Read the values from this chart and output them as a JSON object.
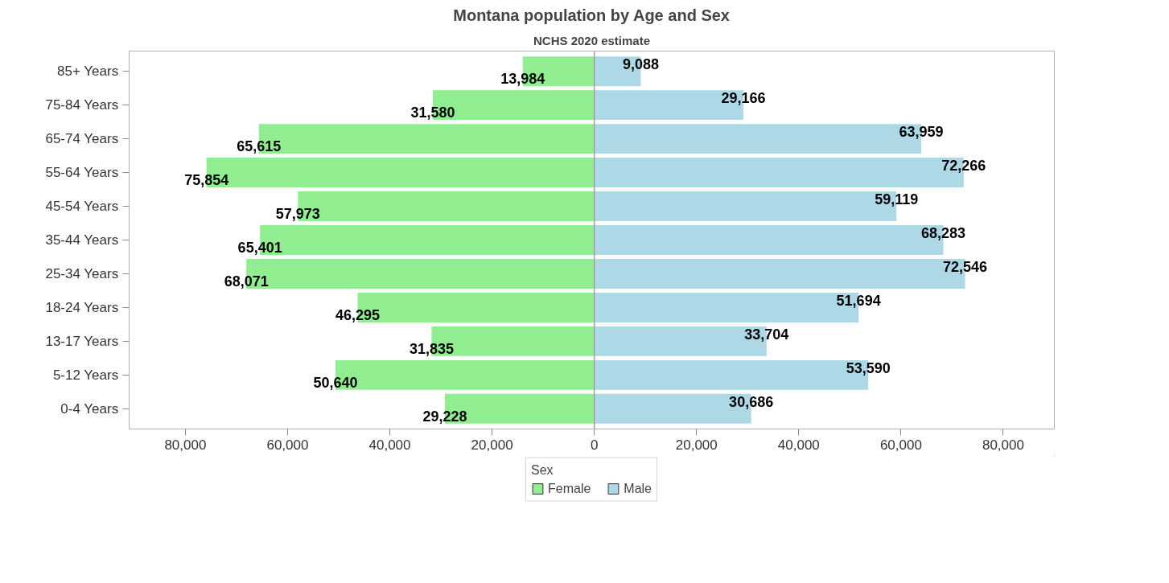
{
  "chart_data": {
    "type": "bar",
    "orientation": "horizontal",
    "title": "Montana population by Age and Sex",
    "subtitle": "NCHS 2020 estimate",
    "legend_title": "Sex",
    "categories": [
      "85+ Years",
      "75-84 Years",
      "65-74 Years",
      "55-64 Years",
      "45-54 Years",
      "35-44 Years",
      "25-34 Years",
      "18-24 Years",
      "13-17 Years",
      "5-12 Years",
      "0-4 Years"
    ],
    "series": [
      {
        "name": "Female",
        "color": "#90ee90",
        "values": [
          13984,
          31580,
          65615,
          75854,
          57973,
          65401,
          68071,
          46295,
          31835,
          50640,
          29228
        ],
        "base": [
          -13984,
          -31580,
          -65615,
          -75854,
          -57973,
          -65401,
          -68071,
          -46295,
          -31835,
          -50640,
          -29228
        ],
        "value_labels": [
          "13,984",
          "31,580",
          "65,615",
          "75,854",
          "57,973",
          "65,401",
          "68,071",
          "46,295",
          "31,835",
          "50,640",
          "29,228"
        ]
      },
      {
        "name": "Male",
        "color": "#add8e6",
        "values": [
          9088,
          29166,
          63959,
          72266,
          59119,
          68283,
          72546,
          51694,
          33704,
          53590,
          30686
        ],
        "value_labels": [
          "9,088",
          "29,166",
          "63,959",
          "72,266",
          "59,119",
          "68,283",
          "72,546",
          "51,694",
          "33,704",
          "53,590",
          "30,686"
        ]
      }
    ],
    "xlim": [
      -91000,
      90000
    ],
    "xticks": [
      {
        "value": -80000,
        "label": "80,000"
      },
      {
        "value": -60000,
        "label": "60,000"
      },
      {
        "value": -40000,
        "label": "40,000"
      },
      {
        "value": -20000,
        "label": "20,000"
      },
      0,
      {
        "value": 20000,
        "label": "20,000"
      },
      {
        "value": 40000,
        "label": "40,000"
      },
      {
        "value": 60000,
        "label": "60,000"
      },
      {
        "value": 80000,
        "label": "80,000"
      }
    ],
    "ref_lines": [
      {
        "axis": "x",
        "value": 0,
        "color": "#a0a0a0"
      }
    ],
    "grid": false,
    "legend": "bottom"
  }
}
